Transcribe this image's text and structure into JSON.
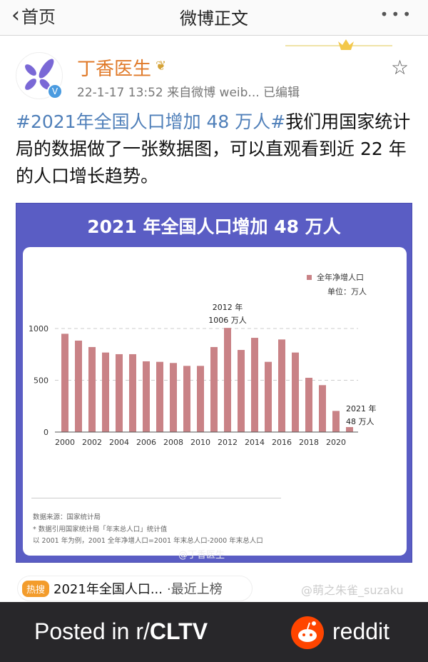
{
  "nav": {
    "back_label": "首页",
    "title": "微博正文",
    "more_icon": "ellipsis-icon"
  },
  "user": {
    "name": "丁香医生",
    "meta": "22-1-17 13:52  来自微博 weib...  已编辑",
    "verified_badge": "V"
  },
  "post": {
    "hashtag": "#2021年全国人口增加 48 万人#",
    "text": "我们用国家统计局的数据做了一张数据图，可以直观看到近 22 年的人口增长趋势。"
  },
  "chart_data": {
    "type": "bar",
    "title": "2021 年全国人口增加 48 万人",
    "categories": [
      "2000",
      "2001",
      "2002",
      "2003",
      "2004",
      "2005",
      "2006",
      "2007",
      "2008",
      "2009",
      "2010",
      "2011",
      "2012",
      "2013",
      "2014",
      "2015",
      "2016",
      "2017",
      "2018",
      "2019",
      "2020",
      "2021"
    ],
    "series": [
      {
        "name": "全年净增人口",
        "values": [
          949,
          883,
          821,
          768,
          752,
          752,
          683,
          678,
          667,
          639,
          639,
          821,
          1006,
          793,
          910,
          678,
          894,
          768,
          524,
          453,
          204,
          48
        ]
      }
    ],
    "unit": "单位：万人",
    "ylim": [
      0,
      1000
    ],
    "yticks": [
      "0",
      "500",
      "1000"
    ],
    "xticks": [
      "2000",
      "2002",
      "2004",
      "2006",
      "2008",
      "2010",
      "2012",
      "2014",
      "2016",
      "2018",
      "2020"
    ],
    "grid": true,
    "legend_position": "top-right",
    "bar_color": "#c98286",
    "annotations": [
      {
        "line1": "2012 年",
        "line2": "1006 万人"
      },
      {
        "line1": "2021 年",
        "line2": "48 万人"
      }
    ],
    "notes": [
      "数据来源：国家统计局",
      "* 数据引用国家统计局「年末总人口」统计值",
      "以 2001 年为例，2001 全年净增人口=2001 年末总人口-2000 年末总人口"
    ],
    "watermark": "@丁香医生"
  },
  "hot": {
    "badge": "热搜",
    "text": "2021年全国人口...",
    "sub": "·最近上榜"
  },
  "watermark2": "@萌之朱雀_suzaku",
  "footer": {
    "posted_prefix": "Posted in r/",
    "subreddit": "CLTV",
    "brand": "reddit",
    "brand_color": "#ff4500"
  }
}
